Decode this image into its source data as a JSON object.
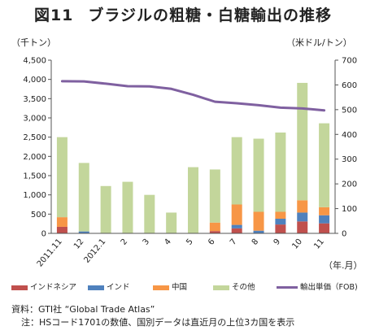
{
  "title": {
    "figure": "図11",
    "text": "ブラジルの粗糖・白糖輸出の推移"
  },
  "units": {
    "left": "（千トン）",
    "right": "（米ドル/トン）",
    "x": "（年.月）"
  },
  "notes": {
    "source": "資料：GTI社 “Global Trade Atlas”",
    "note": "注：HSコード1701の数値、国別データは直近月の上位3カ国を表示"
  },
  "colors": {
    "indonesia": "#C0504D",
    "india": "#4F81BD",
    "china": "#F79646",
    "other": "#C3D69B",
    "fob": "#7F60A0"
  },
  "chart_data": {
    "type": "bar",
    "stacked": true,
    "categories": [
      "2011.11",
      "12",
      "2012.1",
      "2",
      "3",
      "4",
      "5",
      "6",
      "7",
      "8",
      "9",
      "10",
      "11"
    ],
    "y_left": {
      "min": 0,
      "max": 4500,
      "step": 500,
      "ticks": [
        "0",
        "500",
        "1,000",
        "1,500",
        "2,000",
        "2,500",
        "3,000",
        "3,500",
        "4,000",
        "4,500"
      ]
    },
    "y_right": {
      "min": 0,
      "max": 700,
      "step": 100,
      "ticks": [
        "0",
        "100",
        "200",
        "300",
        "400",
        "500",
        "600",
        "700"
      ]
    },
    "series": [
      {
        "name": "インドネシア",
        "key": "indonesia",
        "axis": "left",
        "values": [
          170,
          0,
          0,
          0,
          0,
          0,
          0,
          60,
          130,
          0,
          230,
          310,
          260
        ]
      },
      {
        "name": "インド",
        "key": "india",
        "axis": "left",
        "values": [
          0,
          50,
          0,
          0,
          0,
          0,
          0,
          0,
          90,
          70,
          150,
          230,
          210
        ]
      },
      {
        "name": "中国",
        "key": "china",
        "axis": "left",
        "values": [
          250,
          0,
          0,
          0,
          0,
          0,
          0,
          220,
          530,
          490,
          180,
          320,
          210
        ]
      },
      {
        "name": "その他",
        "key": "other",
        "axis": "left",
        "values": [
          2080,
          1780,
          1230,
          1340,
          1000,
          540,
          1720,
          1380,
          1750,
          1900,
          2060,
          3050,
          2180
        ]
      },
      {
        "name": "輸出単価（FOB)",
        "key": "fob",
        "axis": "right",
        "type": "line",
        "values": [
          615,
          614,
          605,
          595,
          594,
          584,
          560,
          532,
          526,
          518,
          508,
          505,
          497
        ]
      }
    ],
    "legend_position": "bottom",
    "grid": false
  }
}
